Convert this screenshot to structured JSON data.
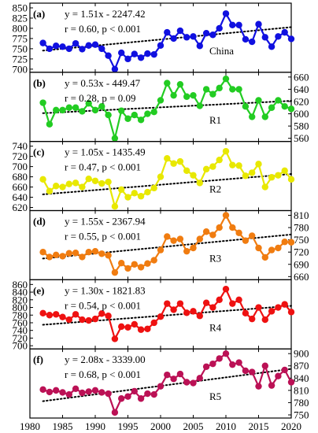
{
  "chart_data": [
    {
      "type": "line",
      "panel_label": "(a)",
      "region": "China",
      "equation": "y = 1.51x - 2247.42",
      "stats": "r = 0.60, p < 0.001",
      "color": "#1010e0",
      "y_axis_side": "left",
      "ylim": [
        700,
        850
      ],
      "yticks": [
        700,
        725,
        750,
        775,
        800,
        825,
        850
      ],
      "trend": {
        "slope": 1.51,
        "intercept": -2247.42
      },
      "x": [
        1982,
        1983,
        1984,
        1985,
        1986,
        1987,
        1988,
        1989,
        1990,
        1991,
        1992,
        1993,
        1994,
        1995,
        1996,
        1997,
        1998,
        1999,
        2000,
        2001,
        2002,
        2003,
        2004,
        2005,
        2006,
        2007,
        2008,
        2009,
        2010,
        2011,
        2012,
        2013,
        2014,
        2015,
        2016,
        2017,
        2018,
        2019,
        2020
      ],
      "values": [
        764,
        750,
        757,
        755,
        750,
        763,
        749,
        758,
        760,
        750,
        733,
        700,
        740,
        725,
        737,
        728,
        738,
        736,
        758,
        790,
        775,
        794,
        778,
        780,
        757,
        788,
        784,
        800,
        836,
        808,
        808,
        773,
        767,
        810,
        778,
        755,
        780,
        790,
        774
      ]
    },
    {
      "type": "line",
      "panel_label": "(b)",
      "region": "R1",
      "equation": "y = 0.53x - 449.47",
      "stats": "r = 0.28, p = 0.09",
      "color": "#22cc22",
      "y_axis_side": "right",
      "ylim": [
        560,
        660
      ],
      "yticks": [
        560,
        580,
        600,
        620,
        640,
        660
      ],
      "trend": {
        "slope": 0.53,
        "intercept": -449.47
      },
      "x": [
        1982,
        1983,
        1984,
        1985,
        1986,
        1987,
        1988,
        1989,
        1990,
        1991,
        1992,
        1993,
        1994,
        1995,
        1996,
        1997,
        1998,
        1999,
        2000,
        2001,
        2002,
        2003,
        2004,
        2005,
        2006,
        2007,
        2008,
        2009,
        2010,
        2011,
        2012,
        2013,
        2014,
        2015,
        2016,
        2017,
        2018,
        2019,
        2020
      ],
      "values": [
        618,
        583,
        606,
        606,
        610,
        610,
        604,
        617,
        606,
        612,
        598,
        560,
        605,
        592,
        598,
        590,
        600,
        603,
        622,
        650,
        630,
        648,
        628,
        630,
        613,
        640,
        632,
        642,
        657,
        640,
        640,
        612,
        595,
        622,
        595,
        610,
        622,
        612,
        608
      ]
    },
    {
      "type": "line",
      "panel_label": "(c)",
      "region": "R2",
      "equation": "y = 1.05x - 1435.49",
      "stats": "r = 0.47, p < 0.001",
      "color": "#e8e800",
      "y_axis_side": "left",
      "ylim": [
        620,
        740
      ],
      "yticks": [
        620,
        640,
        660,
        680,
        700,
        720,
        740
      ],
      "trend": {
        "slope": 1.05,
        "intercept": -1435.49
      },
      "x": [
        1982,
        1983,
        1984,
        1985,
        1986,
        1987,
        1988,
        1989,
        1990,
        1991,
        1992,
        1993,
        1994,
        1995,
        1996,
        1997,
        1998,
        1999,
        2000,
        2001,
        2002,
        2003,
        2004,
        2005,
        2006,
        2007,
        2008,
        2009,
        2010,
        2011,
        2012,
        2013,
        2014,
        2015,
        2016,
        2017,
        2018,
        2019,
        2020
      ],
      "values": [
        675,
        652,
        662,
        660,
        666,
        668,
        660,
        676,
        672,
        667,
        670,
        622,
        655,
        640,
        648,
        642,
        650,
        658,
        680,
        716,
        706,
        710,
        692,
        683,
        668,
        695,
        700,
        713,
        730,
        703,
        702,
        682,
        688,
        705,
        660,
        679,
        683,
        692,
        675
      ]
    },
    {
      "type": "line",
      "panel_label": "(d)",
      "region": "R3",
      "equation": "y = 1.55x - 2367.94",
      "stats": "r = 0.55, p < 0.001",
      "color": "#f07c10",
      "y_axis_side": "right",
      "ylim": [
        660,
        810
      ],
      "yticks": [
        660,
        690,
        720,
        750,
        780,
        810
      ],
      "trend": {
        "slope": 1.55,
        "intercept": -2367.94
      },
      "x": [
        1982,
        1983,
        1984,
        1985,
        1986,
        1987,
        1988,
        1989,
        1990,
        1991,
        1992,
        1993,
        1994,
        1995,
        1996,
        1997,
        1998,
        1999,
        2000,
        2001,
        2002,
        2003,
        2004,
        2005,
        2006,
        2007,
        2008,
        2009,
        2010,
        2011,
        2012,
        2013,
        2014,
        2015,
        2016,
        2017,
        2018,
        2019,
        2020
      ],
      "values": [
        720,
        708,
        713,
        710,
        717,
        718,
        708,
        720,
        722,
        716,
        712,
        670,
        693,
        680,
        690,
        683,
        692,
        700,
        725,
        758,
        748,
        752,
        722,
        730,
        752,
        770,
        762,
        780,
        810,
        780,
        767,
        748,
        760,
        730,
        707,
        725,
        730,
        745,
        744
      ]
    },
    {
      "type": "line",
      "panel_label": "(e)",
      "region": "R4",
      "equation": "y = 1.30x - 1821.83",
      "stats": "r = 0.54, p < 0.001",
      "color": "#ee1111",
      "y_axis_side": "left",
      "ylim": [
        700,
        860
      ],
      "yticks": [
        700,
        720,
        740,
        760,
        780,
        800,
        820,
        840,
        860
      ],
      "trend": {
        "slope": 1.3,
        "intercept": -1821.83
      },
      "x": [
        1982,
        1983,
        1984,
        1985,
        1986,
        1987,
        1988,
        1989,
        1990,
        1991,
        1992,
        1993,
        1994,
        1995,
        1996,
        1997,
        1998,
        1999,
        2000,
        2001,
        2002,
        2003,
        2004,
        2005,
        2006,
        2007,
        2008,
        2009,
        2010,
        2011,
        2012,
        2013,
        2014,
        2015,
        2016,
        2017,
        2018,
        2019,
        2020
      ],
      "values": [
        785,
        780,
        782,
        775,
        768,
        782,
        768,
        766,
        770,
        784,
        778,
        718,
        750,
        748,
        756,
        742,
        744,
        760,
        776,
        810,
        794,
        810,
        786,
        790,
        778,
        812,
        800,
        820,
        848,
        810,
        820,
        785,
        770,
        800,
        768,
        790,
        800,
        808,
        788
      ]
    },
    {
      "type": "line",
      "panel_label": "(f)",
      "region": "R5",
      "equation": "y = 2.08x - 3339.00",
      "stats": "r = 0.68, p < 0.001",
      "color": "#bb1155",
      "y_axis_side": "right",
      "ylim": [
        750,
        900
      ],
      "yticks": [
        750,
        780,
        810,
        840,
        870,
        900
      ],
      "trend": {
        "slope": 2.08,
        "intercept": -3339.0
      },
      "x": [
        1982,
        1983,
        1984,
        1985,
        1986,
        1987,
        1988,
        1989,
        1990,
        1991,
        1992,
        1993,
        1994,
        1995,
        1996,
        1997,
        1998,
        1999,
        2000,
        2001,
        2002,
        2003,
        2004,
        2005,
        2006,
        2007,
        2008,
        2009,
        2010,
        2011,
        2012,
        2013,
        2014,
        2015,
        2016,
        2017,
        2018,
        2019,
        2020
      ],
      "values": [
        812,
        806,
        810,
        805,
        800,
        814,
        804,
        807,
        810,
        805,
        802,
        756,
        790,
        795,
        808,
        790,
        802,
        800,
        820,
        848,
        838,
        850,
        830,
        828,
        840,
        868,
        875,
        888,
        900,
        873,
        878,
        858,
        855,
        820,
        870,
        822,
        845,
        860,
        830
      ]
    }
  ],
  "x_axis": {
    "xlim": [
      1980,
      2020
    ],
    "ticks": [
      "1980",
      "1985",
      "1990",
      "1995",
      "2000",
      "2005",
      "2010",
      "2015",
      "2020"
    ]
  }
}
